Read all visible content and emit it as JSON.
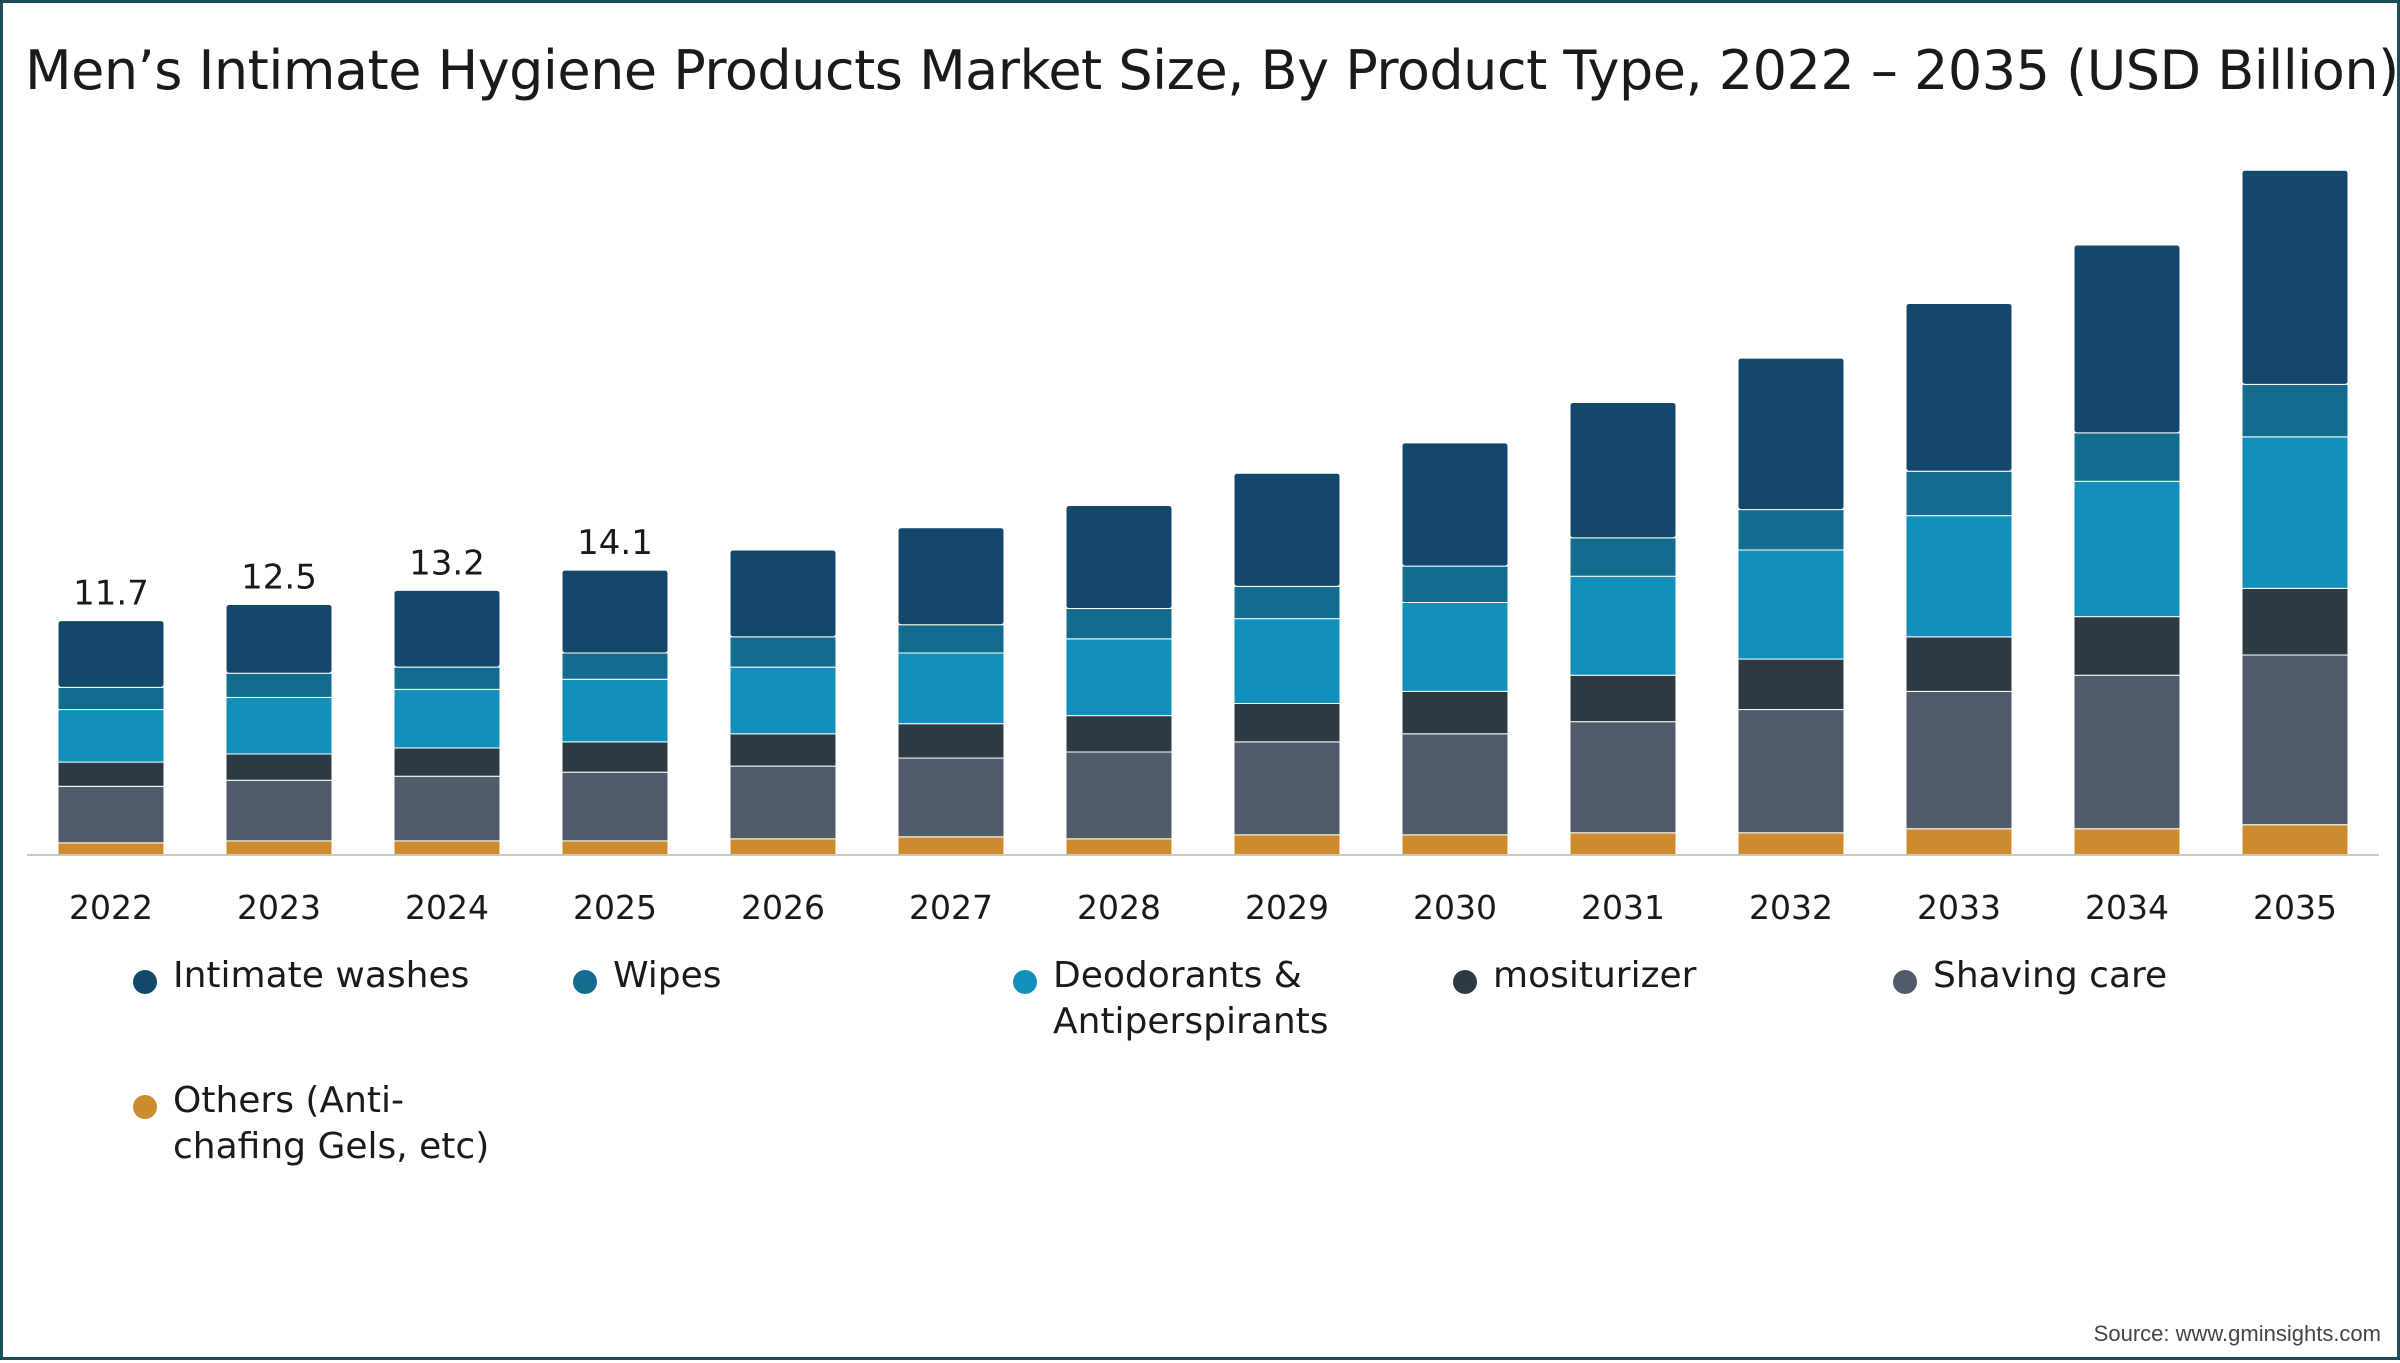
{
  "chart_data": {
    "type": "bar",
    "stacked": true,
    "title": "Men’s Intimate Hygiene Products Market Size, By Product Type, 2022 – 2035 (USD Billion)",
    "categories": [
      "2022",
      "2023",
      "2024",
      "2025",
      "2026",
      "2027",
      "2028",
      "2029",
      "2030",
      "2031",
      "2032",
      "2033",
      "2034",
      "2035"
    ],
    "totals_labels": [
      "11.7",
      "12.5",
      "13.2",
      "14.1",
      "",
      "",
      "",
      "",
      "",
      "",
      "",
      "",
      "",
      ""
    ],
    "series": [
      {
        "name": "Others (Anti-chafing Gels, etc)",
        "color": "#cd8b2e",
        "values": [
          0.6,
          0.7,
          0.7,
          0.7,
          0.8,
          0.9,
          0.8,
          1.0,
          1.0,
          1.1,
          1.1,
          1.3,
          1.3,
          1.5
        ]
      },
      {
        "name": "Shaving care",
        "color": "#4e5d69",
        "values": [
          2.8,
          3.0,
          3.2,
          3.4,
          3.6,
          3.9,
          4.3,
          4.6,
          5.0,
          5.5,
          6.1,
          6.8,
          7.6,
          8.4
        ]
      },
      {
        "name": "mositurizer",
        "color": "#2c3a46",
        "values": [
          1.2,
          1.3,
          1.4,
          1.5,
          1.6,
          1.7,
          1.8,
          1.9,
          2.1,
          2.3,
          2.5,
          2.7,
          2.9,
          3.3
        ]
      },
      {
        "name": "Deodorants & Antiperspirants",
        "color": "#1090bb",
        "values": [
          2.6,
          2.8,
          2.9,
          3.1,
          3.3,
          3.5,
          3.8,
          4.2,
          4.4,
          4.9,
          5.4,
          6.0,
          6.7,
          7.5
        ]
      },
      {
        "name": "Wipes",
        "color": "#136c8d",
        "values": [
          1.1,
          1.2,
          1.1,
          1.3,
          1.5,
          1.4,
          1.5,
          1.6,
          1.8,
          1.9,
          2.0,
          2.2,
          2.4,
          2.6
        ]
      },
      {
        "name": "Intimate washes",
        "color": "#13486b",
        "values": [
          3.3,
          3.4,
          3.8,
          4.1,
          4.3,
          4.8,
          5.1,
          5.6,
          6.1,
          6.7,
          7.5,
          8.3,
          9.3,
          10.6
        ]
      }
    ],
    "xlabel": "",
    "ylabel": "",
    "ylim": [
      0,
      35
    ],
    "grid": false,
    "legend_position": "bottom"
  },
  "legend": {
    "items": [
      {
        "label": "Intimate washes",
        "color": "#13486b"
      },
      {
        "label": "Wipes",
        "color": "#136c8d"
      },
      {
        "label": "Deodorants &\nAntiperspirants",
        "color": "#1090bb"
      },
      {
        "label": "mositurizer",
        "color": "#2c3a46"
      },
      {
        "label": "Shaving care",
        "color": "#4e5d69"
      },
      {
        "label": "Others (Anti-\nchafing Gels, etc)",
        "color": "#cd8b2e"
      }
    ]
  },
  "source": "Source: www.gminsights.com",
  "colors": {
    "axis": "#c8c8c8",
    "frame": "#1f4e57"
  }
}
